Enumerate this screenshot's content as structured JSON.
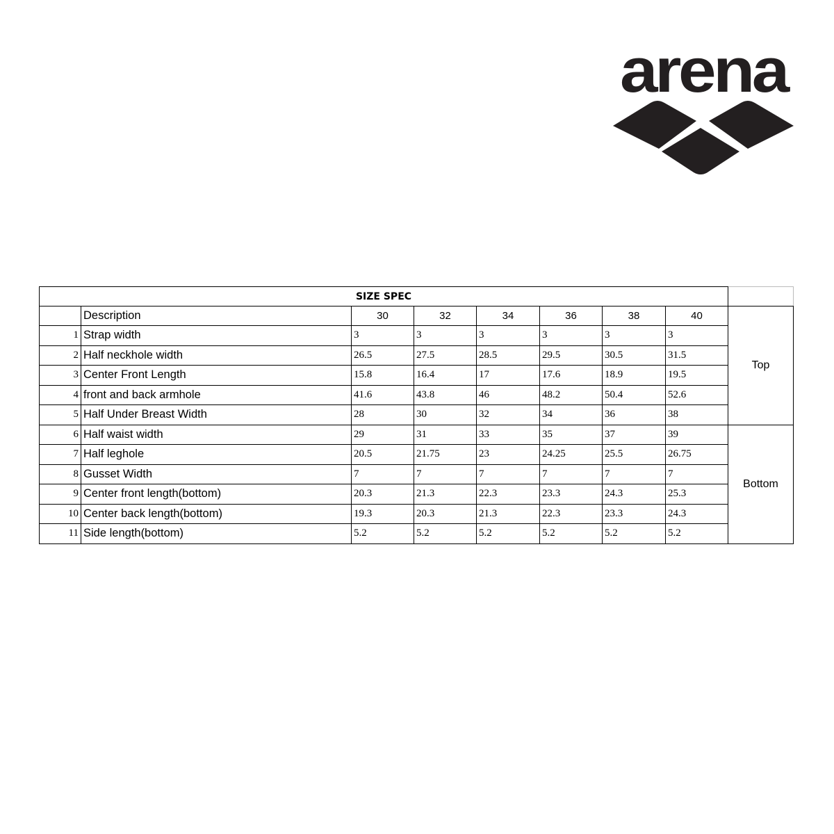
{
  "logo": {
    "text": "arena",
    "color": "#231f20"
  },
  "table": {
    "title": "SIZE SPEC",
    "description_header": "Description",
    "sizes": [
      "30",
      "32",
      "34",
      "36",
      "38",
      "40"
    ],
    "groups": [
      {
        "label": "Top",
        "rows": [
          {
            "no": "1",
            "desc": "Strap width",
            "values": [
              "3",
              "3",
              "3",
              "3",
              "3",
              "3"
            ]
          },
          {
            "no": "2",
            "desc": "Half neckhole width",
            "values": [
              "26.5",
              "27.5",
              "28.5",
              "29.5",
              "30.5",
              "31.5"
            ]
          },
          {
            "no": "3",
            "desc": "Center Front Length",
            "values": [
              "15.8",
              "16.4",
              "17",
              "17.6",
              "18.9",
              "19.5"
            ]
          },
          {
            "no": "4",
            "desc": "front and back armhole",
            "values": [
              "41.6",
              "43.8",
              "46",
              "48.2",
              "50.4",
              "52.6"
            ]
          },
          {
            "no": "5",
            "desc": "Half Under Breast Width",
            "values": [
              "28",
              "30",
              "32",
              "34",
              "36",
              "38"
            ]
          }
        ]
      },
      {
        "label": "Bottom",
        "rows": [
          {
            "no": "6",
            "desc": "Half waist width",
            "values": [
              "29",
              "31",
              "33",
              "35",
              "37",
              "39"
            ]
          },
          {
            "no": "7",
            "desc": "Half leghole",
            "values": [
              "20.5",
              "21.75",
              "23",
              "24.25",
              "25.5",
              "26.75"
            ]
          },
          {
            "no": "8",
            "desc": "Gusset Width",
            "values": [
              "7",
              "7",
              "7",
              "7",
              "7",
              "7"
            ]
          },
          {
            "no": "9",
            "desc": "Center front length(bottom)",
            "values": [
              "20.3",
              "21.3",
              "22.3",
              "23.3",
              "24.3",
              "25.3"
            ]
          },
          {
            "no": "10",
            "desc": "Center back length(bottom)",
            "values": [
              "19.3",
              "20.3",
              "21.3",
              "22.3",
              "23.3",
              "24.3"
            ]
          },
          {
            "no": "11",
            "desc": "Side length(bottom)",
            "values": [
              "5.2",
              "5.2",
              "5.2",
              "5.2",
              "5.2",
              "5.2"
            ]
          }
        ]
      }
    ]
  }
}
